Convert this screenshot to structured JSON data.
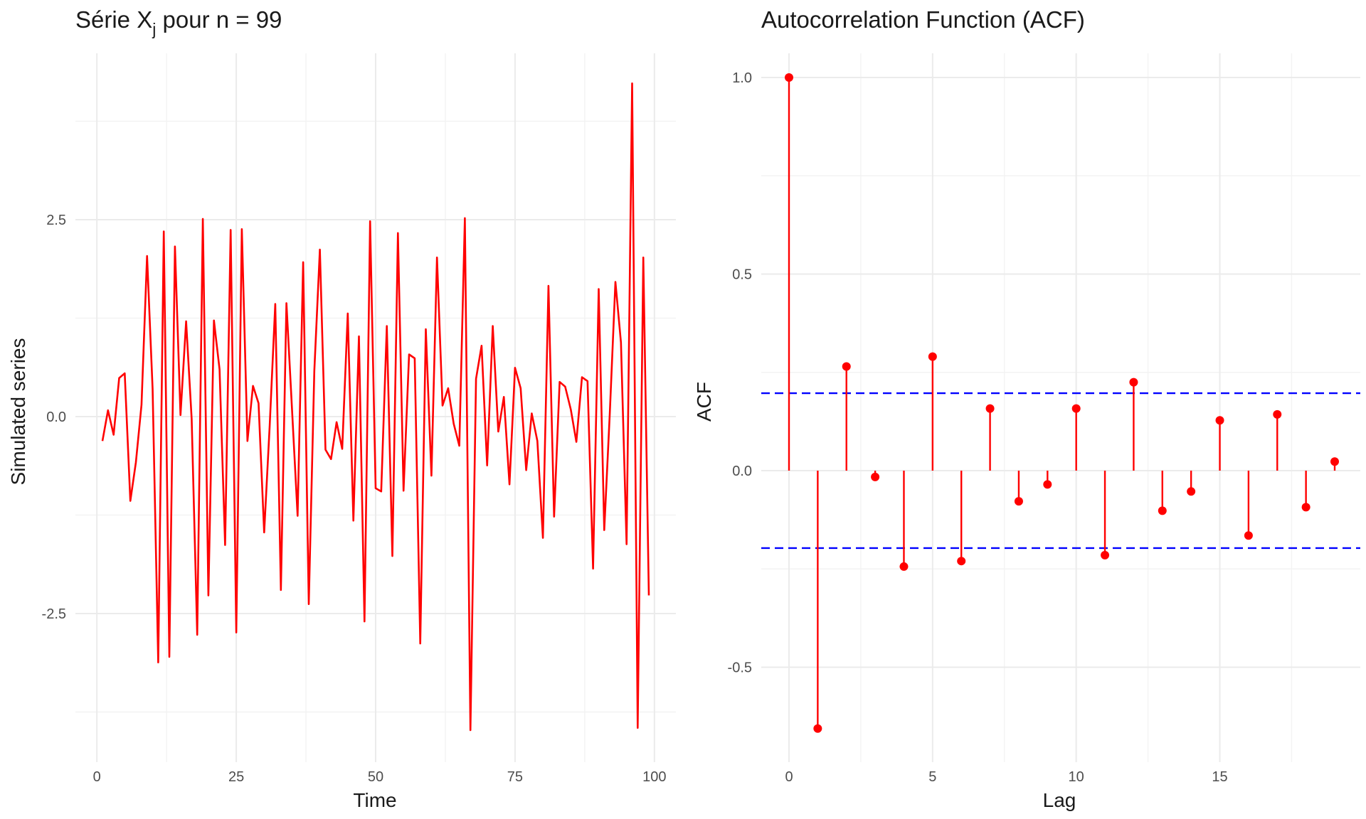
{
  "chart_data": [
    {
      "type": "line",
      "title": "Série X",
      "title_subscript": "j",
      "title_suffix": " pour n = 99",
      "xlabel": "Time",
      "ylabel": "Simulated series",
      "xlim": [
        1,
        99
      ],
      "ylim": [
        -4.2,
        4.2
      ],
      "xticks": [
        0,
        25,
        50,
        75,
        100
      ],
      "xtick_labels": [
        "0",
        "25",
        "50",
        "75",
        "100"
      ],
      "yticks": [
        -2.5,
        0.0,
        2.5
      ],
      "ytick_labels": [
        "-2.5",
        "0.0",
        "2.5"
      ],
      "grid": true,
      "color": "#ff0000",
      "x": [
        1,
        2,
        3,
        4,
        5,
        6,
        7,
        8,
        9,
        10,
        11,
        12,
        13,
        14,
        15,
        16,
        17,
        18,
        19,
        20,
        21,
        22,
        23,
        24,
        25,
        26,
        27,
        28,
        29,
        30,
        31,
        32,
        33,
        34,
        35,
        36,
        37,
        38,
        39,
        40,
        41,
        42,
        43,
        44,
        45,
        46,
        47,
        48,
        49,
        50,
        51,
        52,
        53,
        54,
        55,
        56,
        57,
        58,
        59,
        60,
        61,
        62,
        63,
        64,
        65,
        66,
        67,
        68,
        69,
        70,
        71,
        72,
        73,
        74,
        75,
        76,
        77,
        78,
        79,
        80,
        81,
        82,
        83,
        84,
        85,
        86,
        87,
        88,
        89,
        90,
        91,
        92,
        93,
        94,
        95,
        96,
        97,
        98,
        99
      ],
      "values": [
        -0.31,
        0.08,
        -0.23,
        0.49,
        0.55,
        -1.07,
        -0.58,
        0.15,
        2.04,
        0.35,
        -3.12,
        2.35,
        -3.05,
        2.16,
        0.02,
        1.21,
        -0.03,
        -2.77,
        2.51,
        -2.27,
        1.22,
        0.6,
        -1.63,
        2.37,
        -2.74,
        2.38,
        -0.31,
        0.39,
        0.17,
        -1.47,
        -0.11,
        1.43,
        -2.2,
        1.44,
        0.1,
        -1.26,
        1.96,
        -2.38,
        0.58,
        2.12,
        -0.42,
        -0.54,
        -0.07,
        -0.41,
        1.31,
        -1.32,
        1.02,
        -2.6,
        2.48,
        -0.91,
        -0.95,
        1.15,
        -1.77,
        2.33,
        -0.94,
        0.79,
        0.74,
        -2.88,
        1.11,
        -0.75,
        2.02,
        0.14,
        0.36,
        -0.09,
        -0.37,
        2.52,
        -3.98,
        0.48,
        0.9,
        -0.62,
        1.15,
        -0.19,
        0.25,
        -0.86,
        0.62,
        0.36,
        -0.68,
        0.04,
        -0.31,
        -1.54,
        1.66,
        -1.27,
        0.44,
        0.38,
        0.09,
        -0.32,
        0.5,
        0.45,
        -1.93,
        1.62,
        -1.44,
        0.04,
        1.71,
        0.94,
        -1.62,
        4.23,
        -3.95,
        2.02,
        -2.27
      ]
    },
    {
      "type": "bar",
      "title": "Autocorrelation Function (ACF)",
      "xlabel": "Lag",
      "ylabel": "ACF",
      "xlim": [
        -0.4,
        19.4
      ],
      "ylim": [
        -0.7,
        1.06
      ],
      "xticks": [
        0,
        5,
        10,
        15
      ],
      "xtick_labels": [
        "0",
        "5",
        "10",
        "15"
      ],
      "yticks": [
        -0.5,
        0.0,
        0.5,
        1.0
      ],
      "ytick_labels": [
        "-0.5",
        "0.0",
        "0.5",
        "1.0"
      ],
      "grid": true,
      "color": "#ff0000",
      "ci_color": "#0000ff",
      "ci_bounds": [
        0.197,
        -0.197
      ],
      "lags": [
        0,
        1,
        2,
        3,
        4,
        5,
        6,
        7,
        8,
        9,
        10,
        11,
        12,
        13,
        14,
        15,
        16,
        17,
        18,
        19
      ],
      "values": [
        1.0,
        -0.656,
        0.265,
        -0.016,
        -0.244,
        0.29,
        -0.23,
        0.158,
        -0.078,
        -0.035,
        0.158,
        -0.215,
        0.225,
        -0.102,
        -0.053,
        0.128,
        -0.165,
        0.143,
        -0.093,
        0.023
      ]
    }
  ]
}
